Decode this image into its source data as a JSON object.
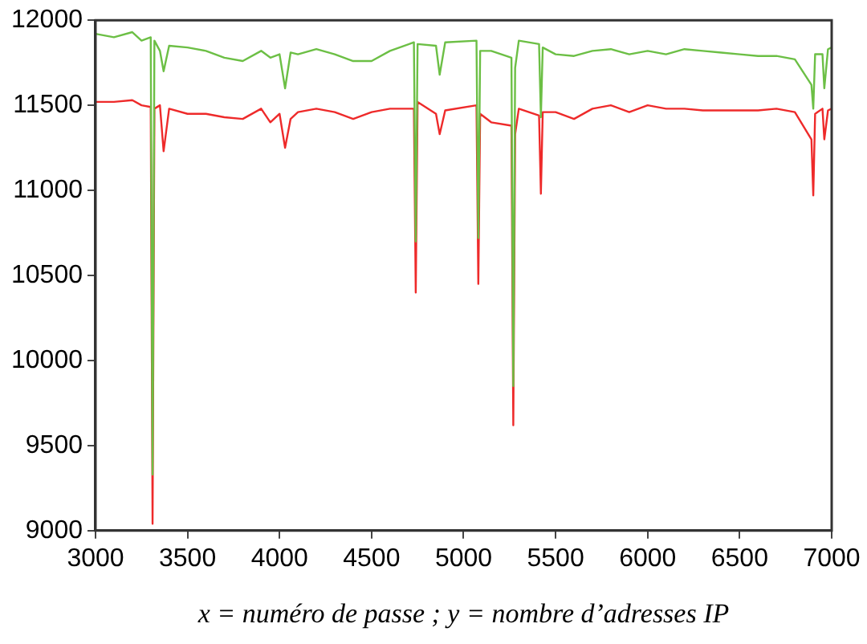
{
  "chart_data": {
    "type": "line",
    "xlabel": "x = numéro de passe ; y = nombre d’adresses IP",
    "xlim": [
      3000,
      7000
    ],
    "xticks": [
      3000,
      3500,
      4000,
      4500,
      5000,
      5500,
      6000,
      6500,
      7000
    ],
    "ylim": [
      9000,
      12000
    ],
    "yticks": [
      9000,
      9500,
      10000,
      10500,
      11000,
      11500,
      12000
    ],
    "grid": false,
    "legend": false,
    "marker": "none",
    "line_style": "solid",
    "x": [
      3000,
      3100,
      3200,
      3250,
      3300,
      3310,
      3320,
      3350,
      3370,
      3400,
      3500,
      3600,
      3700,
      3800,
      3900,
      3950,
      4000,
      4030,
      4060,
      4100,
      4200,
      4300,
      4400,
      4500,
      4600,
      4730,
      4740,
      4750,
      4850,
      4870,
      4900,
      5070,
      5080,
      5090,
      5150,
      5260,
      5270,
      5280,
      5300,
      5410,
      5420,
      5430,
      5500,
      5600,
      5700,
      5800,
      5900,
      6000,
      6100,
      6200,
      6300,
      6400,
      6500,
      6600,
      6700,
      6800,
      6890,
      6900,
      6910,
      6950,
      6960,
      6980,
      7000
    ],
    "series": [
      {
        "color": "#6cbf45",
        "values": [
          11920,
          11900,
          11930,
          11880,
          11900,
          9330,
          11880,
          11820,
          11700,
          11850,
          11840,
          11820,
          11780,
          11760,
          11820,
          11780,
          11800,
          11600,
          11810,
          11800,
          11830,
          11800,
          11760,
          11760,
          11820,
          11870,
          10700,
          11860,
          11850,
          11680,
          11870,
          11880,
          10720,
          11820,
          11820,
          11780,
          9850,
          11720,
          11880,
          11860,
          11430,
          11840,
          11800,
          11790,
          11820,
          11830,
          11800,
          11820,
          11800,
          11830,
          11820,
          11810,
          11800,
          11790,
          11790,
          11770,
          11620,
          11480,
          11800,
          11800,
          11600,
          11830,
          11840
        ]
      },
      {
        "color": "#ee2a2a",
        "values": [
          11520,
          11520,
          11530,
          11500,
          11490,
          9040,
          11480,
          11500,
          11230,
          11480,
          11450,
          11450,
          11430,
          11420,
          11480,
          11400,
          11450,
          11250,
          11420,
          11460,
          11480,
          11460,
          11420,
          11460,
          11480,
          11480,
          10400,
          11520,
          11450,
          11330,
          11470,
          11500,
          10450,
          11450,
          11400,
          11380,
          9620,
          11330,
          11480,
          11440,
          10980,
          11460,
          11460,
          11420,
          11480,
          11500,
          11460,
          11500,
          11480,
          11480,
          11470,
          11470,
          11470,
          11470,
          11480,
          11460,
          11300,
          10970,
          11450,
          11480,
          11300,
          11470,
          11480
        ]
      }
    ]
  }
}
